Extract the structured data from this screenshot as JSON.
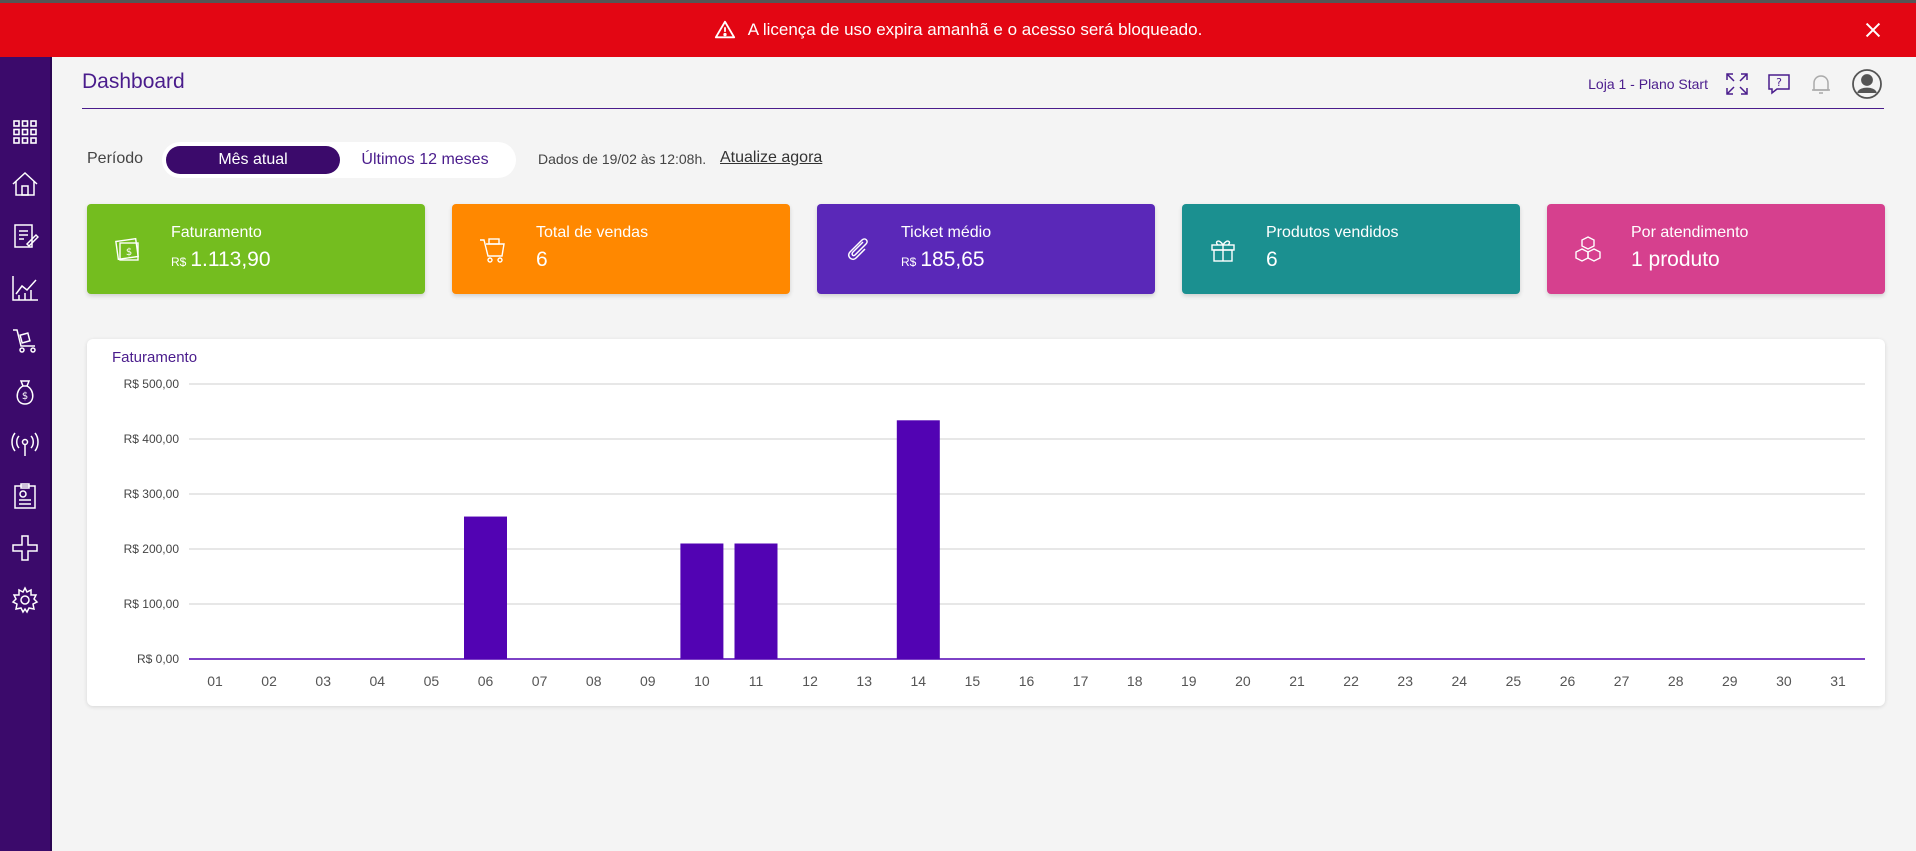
{
  "banner": {
    "message": "A licença de uso expira amanhã e o acesso será bloqueado.",
    "color": "#e30613"
  },
  "header": {
    "title": "Dashboard",
    "store": "Loja 1 - Plano Start"
  },
  "sidebar": {
    "items": [
      "apps-grid-icon",
      "home-icon",
      "document-edit-icon",
      "chart-icon",
      "cart-icon",
      "money-bag-icon",
      "broadcast-icon",
      "report-icon",
      "integrations-icon",
      "settings-icon"
    ]
  },
  "filters": {
    "period_label": "Período",
    "options": [
      "Mês atual",
      "Últimos 12 meses"
    ],
    "selected": "Mês atual",
    "data_date": "Dados de 19/02 às 12:08h.",
    "refresh_link": "Atualize agora"
  },
  "cards": [
    {
      "label": "Faturamento",
      "currency": "R$",
      "value": "1.113,90",
      "color": "#74bd1f",
      "icon": "money-icon"
    },
    {
      "label": "Total de vendas",
      "currency": "",
      "value": "6",
      "color": "#ff8800",
      "icon": "cart-icon"
    },
    {
      "label": "Ticket médio",
      "currency": "R$",
      "value": "185,65",
      "color": "#5a28b8",
      "icon": "paperclip-icon"
    },
    {
      "label": "Produtos vendidos",
      "currency": "",
      "value": "6",
      "color": "#1b9090",
      "icon": "gift-icon"
    },
    {
      "label": "Por atendimento",
      "currency": "",
      "value": "1 produto",
      "color": "#d6408e",
      "icon": "boxes-icon"
    }
  ],
  "chart_data": {
    "type": "bar",
    "title": "Faturamento",
    "categories": [
      "01",
      "02",
      "03",
      "04",
      "05",
      "06",
      "07",
      "08",
      "09",
      "10",
      "11",
      "12",
      "13",
      "14",
      "15",
      "16",
      "17",
      "18",
      "19",
      "20",
      "21",
      "22",
      "23",
      "24",
      "25",
      "26",
      "27",
      "28",
      "29",
      "30",
      "31"
    ],
    "values": [
      0,
      0,
      0,
      0,
      0,
      259,
      0,
      0,
      0,
      210,
      210,
      0,
      0,
      434,
      0,
      0,
      0,
      0,
      0,
      0,
      0,
      0,
      0,
      0,
      0,
      0,
      0,
      0,
      0,
      0,
      0
    ],
    "ylim": [
      0,
      500
    ],
    "yticks": [
      "R$ 0,00",
      "R$ 100,00",
      "R$ 200,00",
      "R$ 300,00",
      "R$ 400,00",
      "R$ 500,00"
    ],
    "bar_color": "#5203b3",
    "grid": true
  }
}
